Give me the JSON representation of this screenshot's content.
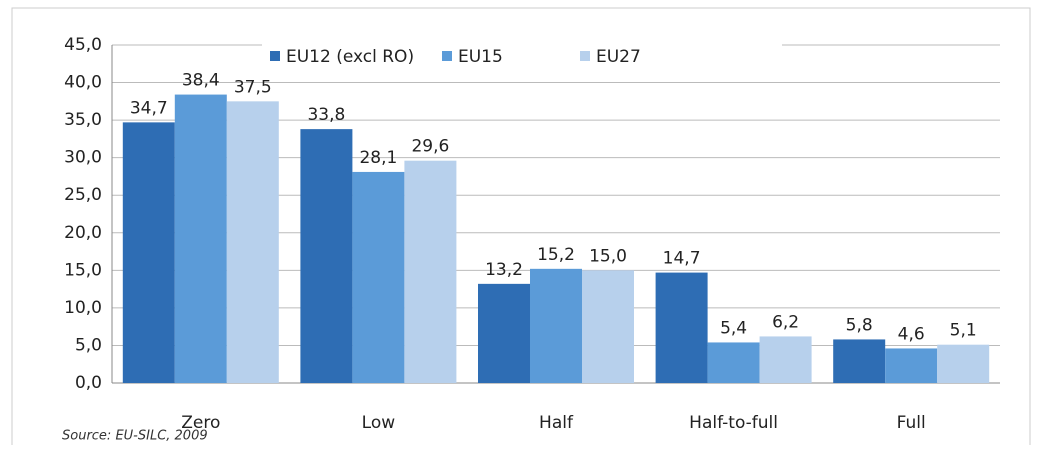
{
  "chart_data": {
    "type": "bar",
    "categories": [
      "Zero",
      "Low",
      "Half",
      "Half-to-full",
      "Full"
    ],
    "series": [
      {
        "name": "EU12 (excl RO)",
        "color": "#2e6db4",
        "values": [
          34.7,
          33.8,
          13.2,
          14.7,
          5.8
        ],
        "value_labels": [
          "34,7",
          "33,8",
          "13,2",
          "14,7",
          "5,8"
        ]
      },
      {
        "name": "EU15",
        "color": "#5b9bd8",
        "values": [
          38.4,
          28.1,
          15.2,
          5.4,
          4.6
        ],
        "value_labels": [
          "38,4",
          "28,1",
          "15,2",
          "5,4",
          "4,6"
        ]
      },
      {
        "name": "EU27",
        "color": "#b7d0ec",
        "values": [
          37.5,
          29.6,
          15.0,
          6.2,
          5.1
        ],
        "value_labels": [
          "37,5",
          "29,6",
          "15,0",
          "6,2",
          "5,1"
        ]
      }
    ],
    "ylim": [
      0,
      45
    ],
    "yticks": [
      {
        "value": 0,
        "label": "0,0"
      },
      {
        "value": 5,
        "label": "5,0"
      },
      {
        "value": 10,
        "label": "10,0"
      },
      {
        "value": 15,
        "label": "15,0"
      },
      {
        "value": 20,
        "label": "20,0"
      },
      {
        "value": 25,
        "label": "25,0"
      },
      {
        "value": 30,
        "label": "30,0"
      },
      {
        "value": 35,
        "label": "35,0"
      },
      {
        "value": 40,
        "label": "40,0"
      },
      {
        "value": 45,
        "label": "45,0"
      }
    ],
    "grid": true,
    "source": "Source: EU-SILC, 2009"
  }
}
